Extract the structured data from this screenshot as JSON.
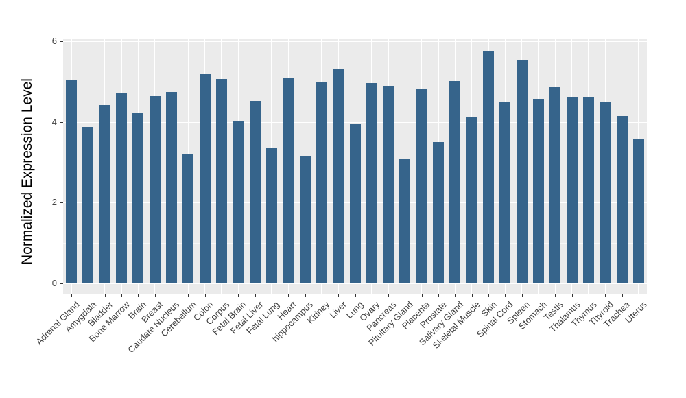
{
  "chart_data": {
    "type": "bar",
    "title": "",
    "xlabel": "",
    "ylabel": "Normalized Expression Level",
    "categories": [
      "Adrenal Gland",
      "Amygdala",
      "Bladder",
      "Bone Marrow",
      "Brain",
      "Breast",
      "Caudate Nucleus",
      "Cerebellum",
      "Colon",
      "Corpus",
      "Fetal Brain",
      "Fetal Liver",
      "Fetal Lung",
      "Heart",
      "hippocampus",
      "Kidney",
      "Liver",
      "Lung",
      "Ovary",
      "Pancreas",
      "Pituitary Gland",
      "Placenta",
      "Prostate",
      "Salivary Gland",
      "Skeletal Muscle",
      "Skin",
      "Spinal Cord",
      "Spleen",
      "Stomach",
      "Testis",
      "Thalamus",
      "Thymus",
      "Thyroid",
      "Trachea",
      "Uterus"
    ],
    "values": [
      5.05,
      3.88,
      4.42,
      4.73,
      4.21,
      4.65,
      4.74,
      3.19,
      5.18,
      5.07,
      4.03,
      4.52,
      3.35,
      5.11,
      3.17,
      4.99,
      5.31,
      3.94,
      4.96,
      4.9,
      3.08,
      4.81,
      3.5,
      5.01,
      4.14,
      5.74,
      4.5,
      5.53,
      4.58,
      4.87,
      4.62,
      4.62,
      4.49,
      4.15,
      3.59
    ],
    "yticks": [
      0,
      2,
      4,
      6
    ],
    "minor_grid_values": [
      1,
      3,
      5
    ],
    "ylim": [
      0,
      6.05
    ],
    "grid": "on",
    "legend_position": "none",
    "bar_color": "#36648B",
    "panel_background": "#EBEBEB",
    "grid_color": "#FFFFFF",
    "axis_text_color": "#404040",
    "axis_title_color": "#000000",
    "tick_mark_color": "#333333"
  }
}
